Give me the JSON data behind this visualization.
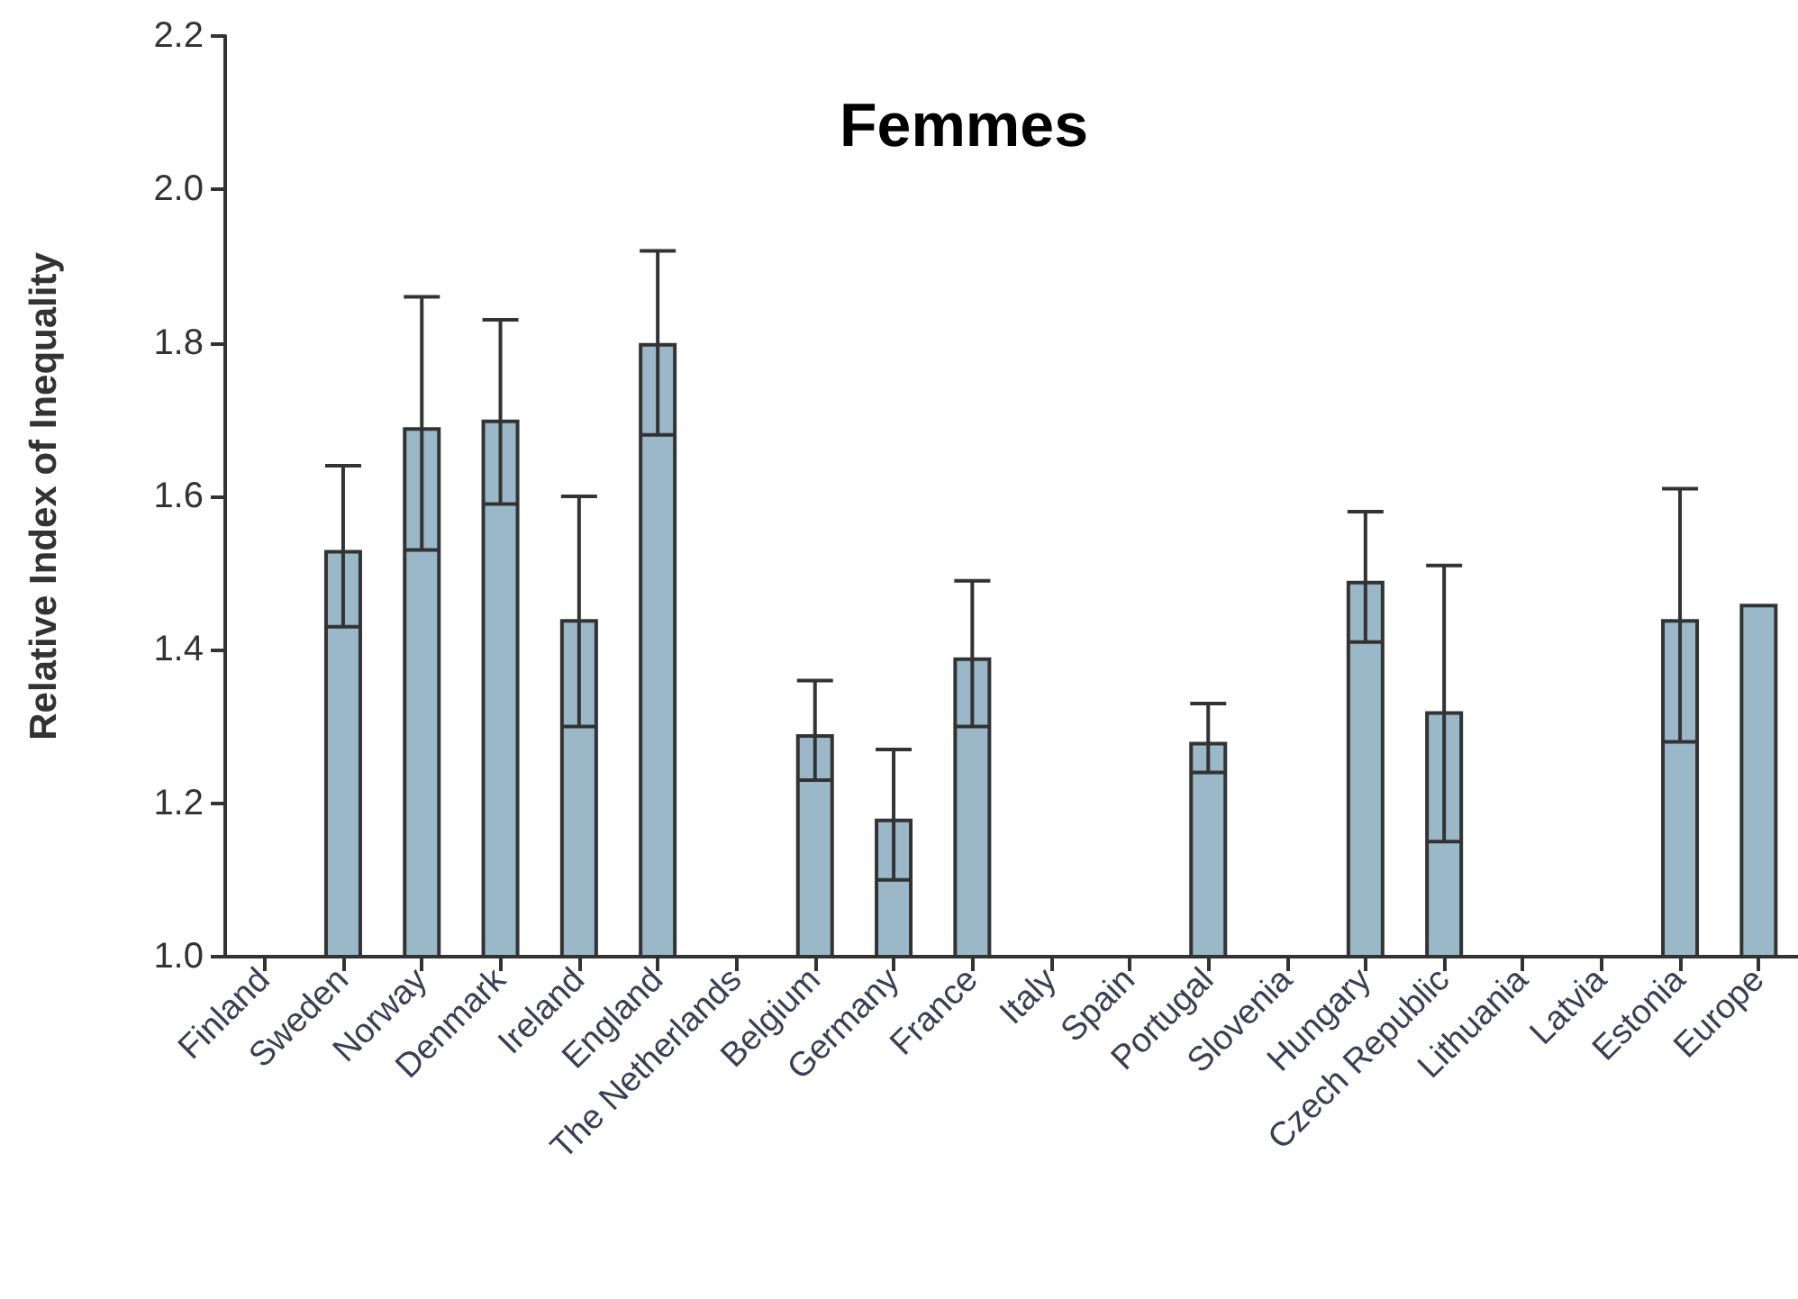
{
  "chart_data": {
    "type": "bar",
    "title": "Femmes",
    "ylabel": "Relative Index of Inequality",
    "categories": [
      "Finland",
      "Sweden",
      "Norway",
      "Denmark",
      "Ireland",
      "England",
      "The Netherlands",
      "Belgium",
      "Germany",
      "France",
      "Italy",
      "Spain",
      "Portugal",
      "Slovenia",
      "Hungary",
      "Czech Republic",
      "Lithuania",
      "Latvia",
      "Estonia",
      "Europe"
    ],
    "values": [
      null,
      1.53,
      1.69,
      1.7,
      1.44,
      1.8,
      null,
      1.29,
      1.18,
      1.39,
      null,
      null,
      1.28,
      null,
      1.49,
      1.32,
      null,
      null,
      1.44,
      1.46
    ],
    "errors": [
      null,
      [
        1.43,
        1.64
      ],
      [
        1.53,
        1.86
      ],
      [
        1.59,
        1.83
      ],
      [
        1.3,
        1.6
      ],
      [
        1.68,
        1.92
      ],
      null,
      [
        1.23,
        1.36
      ],
      [
        1.1,
        1.27
      ],
      [
        1.3,
        1.49
      ],
      null,
      null,
      [
        1.24,
        1.33
      ],
      null,
      [
        1.41,
        1.58
      ],
      [
        1.15,
        1.51
      ],
      null,
      null,
      [
        1.28,
        1.61
      ],
      null
    ],
    "color": "#9ab8c8",
    "ylim": [
      1.0,
      2.2
    ],
    "yticks": [
      {
        "value": 1.0,
        "label": "1.0"
      },
      {
        "value": 1.2,
        "label": "1.2"
      },
      {
        "value": 1.4,
        "label": "1.4"
      },
      {
        "value": 1.6,
        "label": "1.6"
      },
      {
        "value": 1.8,
        "label": "1.8"
      },
      {
        "value": 2.0,
        "label": "2.0"
      },
      {
        "value": 2.2,
        "label": "2.2"
      }
    ],
    "grid": false,
    "legend": false
  }
}
